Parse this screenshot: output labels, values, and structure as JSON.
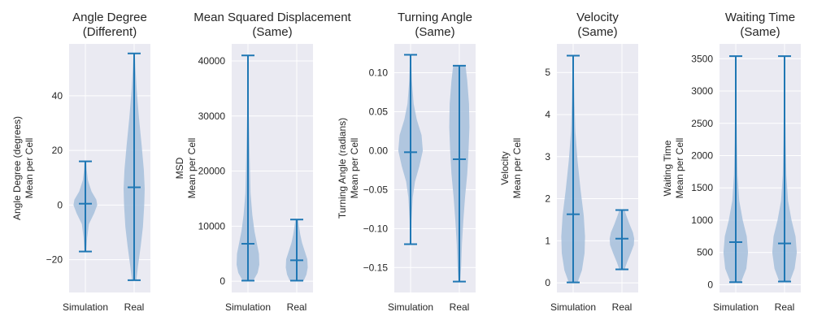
{
  "figure": {
    "background": "#ffffff",
    "plot_background": "#eaeaf2",
    "violin_fill": "#a6c0dc",
    "line_color": "#1f77b4"
  },
  "chart_data": [
    {
      "type": "violin",
      "title_lines": [
        "Angle Degree",
        "(Different)"
      ],
      "ylabel_lines": [
        "Angle Degree (degrees)",
        "Mean per Cell"
      ],
      "categories": [
        "Simulation",
        "Real"
      ],
      "ylim": [
        -32,
        59
      ],
      "yticks": [
        -20,
        0,
        20,
        40
      ],
      "ytick_labels": [
        "−20",
        "0",
        "20",
        "40"
      ],
      "grid": true,
      "series": [
        {
          "min": -17,
          "max": 16,
          "median": 0.5,
          "profile": [
            [
              -17,
              0.02
            ],
            [
              -12,
              0.04
            ],
            [
              -7,
              0.08
            ],
            [
              -3,
              0.2
            ],
            [
              0,
              0.27
            ],
            [
              2,
              0.25
            ],
            [
              5,
              0.14
            ],
            [
              9,
              0.06
            ],
            [
              13,
              0.03
            ],
            [
              16,
              0.02
            ]
          ]
        },
        {
          "min": -27.5,
          "max": 55.5,
          "median": 6.5,
          "profile": [
            [
              -27.5,
              0.05
            ],
            [
              -22,
              0.09
            ],
            [
              -15,
              0.15
            ],
            [
              -8,
              0.2
            ],
            [
              0,
              0.23
            ],
            [
              6,
              0.24
            ],
            [
              13,
              0.22
            ],
            [
              22,
              0.17
            ],
            [
              32,
              0.11
            ],
            [
              42,
              0.06
            ],
            [
              50,
              0.03
            ],
            [
              55.5,
              0.015
            ]
          ]
        }
      ]
    },
    {
      "type": "violin",
      "title_lines": [
        "Mean Squared Displacement",
        "(Same)"
      ],
      "ylabel_lines": [
        "MSD",
        "Mean per Cell"
      ],
      "categories": [
        "Simulation",
        "Real"
      ],
      "ylim": [
        -2050,
        43100
      ],
      "yticks": [
        0,
        10000,
        20000,
        30000,
        40000
      ],
      "ytick_labels": [
        "0",
        "10000",
        "20000",
        "30000",
        "40000"
      ],
      "grid": true,
      "series": [
        {
          "min": 100,
          "max": 41000,
          "median": 6800,
          "profile": [
            [
              100,
              0.12
            ],
            [
              1500,
              0.22
            ],
            [
              3000,
              0.26
            ],
            [
              5000,
              0.25
            ],
            [
              7000,
              0.2
            ],
            [
              9000,
              0.15
            ],
            [
              12000,
              0.1
            ],
            [
              16000,
              0.06
            ],
            [
              22000,
              0.04
            ],
            [
              30000,
              0.02
            ],
            [
              41000,
              0.01
            ]
          ]
        },
        {
          "min": 100,
          "max": 11200,
          "median": 3800,
          "profile": [
            [
              100,
              0.16
            ],
            [
              1200,
              0.22
            ],
            [
              2500,
              0.25
            ],
            [
              4000,
              0.24
            ],
            [
              5500,
              0.18
            ],
            [
              7000,
              0.12
            ],
            [
              8500,
              0.08
            ],
            [
              10000,
              0.05
            ],
            [
              11200,
              0.03
            ]
          ]
        }
      ]
    },
    {
      "type": "violin",
      "title_lines": [
        "Turning Angle",
        "(Same)"
      ],
      "ylabel_lines": [
        "Turning Angle (radians)",
        "Mean per Cell"
      ],
      "categories": [
        "Simulation",
        "Real"
      ],
      "ylim": [
        -0.182,
        0.137
      ],
      "yticks": [
        -0.15,
        -0.1,
        -0.05,
        0.0,
        0.05,
        0.1
      ],
      "ytick_labels": [
        "−0.15",
        "−0.10",
        "−0.05",
        "0.00",
        "0.05",
        "0.10"
      ],
      "grid": true,
      "series": [
        {
          "min": -0.12,
          "max": 0.123,
          "median": -0.002,
          "profile": [
            [
              -0.12,
              0.01
            ],
            [
              -0.09,
              0.02
            ],
            [
              -0.06,
              0.05
            ],
            [
              -0.04,
              0.1
            ],
            [
              -0.02,
              0.2
            ],
            [
              0.0,
              0.28
            ],
            [
              0.02,
              0.25
            ],
            [
              0.04,
              0.14
            ],
            [
              0.06,
              0.07
            ],
            [
              0.09,
              0.03
            ],
            [
              0.123,
              0.01
            ]
          ]
        },
        {
          "min": -0.168,
          "max": 0.109,
          "median": -0.011,
          "profile": [
            [
              -0.168,
              0.02
            ],
            [
              -0.15,
              0.04
            ],
            [
              -0.12,
              0.06
            ],
            [
              -0.09,
              0.09
            ],
            [
              -0.06,
              0.13
            ],
            [
              -0.03,
              0.18
            ],
            [
              0.0,
              0.21
            ],
            [
              0.03,
              0.23
            ],
            [
              0.06,
              0.22
            ],
            [
              0.09,
              0.18
            ],
            [
              0.109,
              0.14
            ]
          ]
        }
      ]
    },
    {
      "type": "violin",
      "title_lines": [
        "Velocity",
        "(Same)"
      ],
      "ylabel_lines": [
        "Velocity",
        "Mean per Cell"
      ],
      "categories": [
        "Simulation",
        "Real"
      ],
      "ylim": [
        -0.23,
        5.68
      ],
      "yticks": [
        0,
        1,
        2,
        3,
        4,
        5
      ],
      "ytick_labels": [
        "0",
        "1",
        "2",
        "3",
        "4",
        "5"
      ],
      "grid": true,
      "series": [
        {
          "min": 0.01,
          "max": 5.4,
          "median": 1.63,
          "profile": [
            [
              0.01,
              0.1
            ],
            [
              0.3,
              0.2
            ],
            [
              0.7,
              0.26
            ],
            [
              1.1,
              0.27
            ],
            [
              1.6,
              0.24
            ],
            [
              2.2,
              0.17
            ],
            [
              2.9,
              0.1
            ],
            [
              3.6,
              0.05
            ],
            [
              4.3,
              0.03
            ],
            [
              5.4,
              0.01
            ]
          ]
        },
        {
          "min": 0.32,
          "max": 1.73,
          "median": 1.05,
          "profile": [
            [
              0.32,
              0.06
            ],
            [
              0.5,
              0.12
            ],
            [
              0.7,
              0.2
            ],
            [
              0.9,
              0.27
            ],
            [
              1.05,
              0.28
            ],
            [
              1.2,
              0.25
            ],
            [
              1.4,
              0.17
            ],
            [
              1.6,
              0.1
            ],
            [
              1.73,
              0.06
            ]
          ]
        }
      ]
    },
    {
      "type": "violin",
      "title_lines": [
        "Waiting Time",
        "(Same)"
      ],
      "ylabel_lines": [
        "Waiting Time",
        "Mean per Cell"
      ],
      "categories": [
        "Simulation",
        "Real"
      ],
      "ylim": [
        -120,
        3730
      ],
      "yticks": [
        0,
        500,
        1000,
        1500,
        2000,
        2500,
        3000,
        3500
      ],
      "ytick_labels": [
        "0",
        "500",
        "1000",
        "1500",
        "2000",
        "2500",
        "3000",
        "3500"
      ],
      "grid": true,
      "series": [
        {
          "min": 40,
          "max": 3540,
          "median": 660,
          "profile": [
            [
              40,
              0.12
            ],
            [
              250,
              0.24
            ],
            [
              500,
              0.28
            ],
            [
              750,
              0.25
            ],
            [
              1000,
              0.16
            ],
            [
              1300,
              0.08
            ],
            [
              1700,
              0.04
            ],
            [
              2200,
              0.025
            ],
            [
              2800,
              0.015
            ],
            [
              3540,
              0.008
            ]
          ]
        },
        {
          "min": 50,
          "max": 3540,
          "median": 640,
          "profile": [
            [
              50,
              0.12
            ],
            [
              250,
              0.23
            ],
            [
              500,
              0.28
            ],
            [
              750,
              0.25
            ],
            [
              1000,
              0.16
            ],
            [
              1300,
              0.08
            ],
            [
              1700,
              0.04
            ],
            [
              2200,
              0.025
            ],
            [
              2800,
              0.015
            ],
            [
              3540,
              0.008
            ]
          ]
        }
      ]
    }
  ]
}
